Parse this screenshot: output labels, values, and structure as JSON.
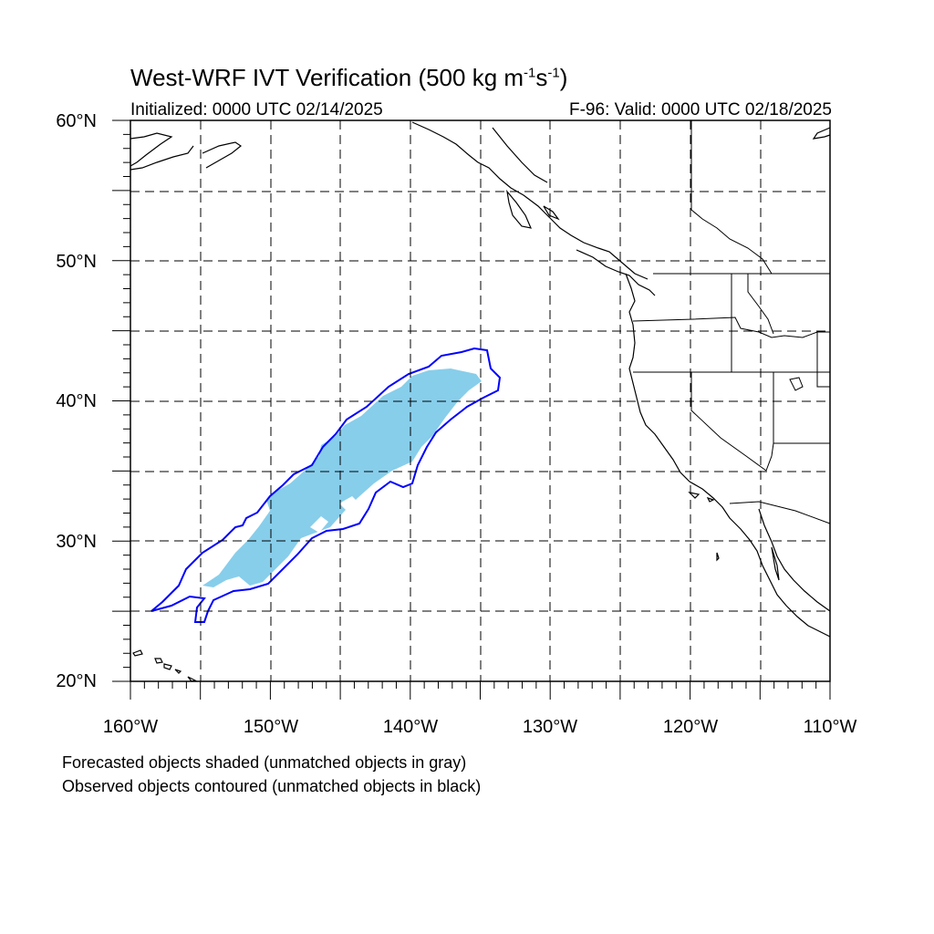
{
  "title": {
    "main": "West-WRF IVT Verification (500 kg m",
    "exp1": "-1",
    "mid": "s",
    "exp2": "-1",
    "close": ")"
  },
  "subtitle": {
    "initialized": "Initialized: 0000 UTC 02/14/2025",
    "valid": "F-96: Valid: 0000 UTC 02/18/2025"
  },
  "axes": {
    "lat_labels": [
      "60°N",
      "50°N",
      "40°N",
      "30°N",
      "20°N"
    ],
    "lon_labels": [
      "160°W",
      "150°W",
      "140°W",
      "130°W",
      "120°W",
      "110°W"
    ]
  },
  "notes": {
    "forecast": "Forecasted objects shaded (unmatched objects in gray)",
    "observed": "Observed objects contoured (unmatched objects in black)"
  },
  "colors": {
    "forecast_fill": "#87ceeb",
    "observed_contour": "#0000ff",
    "coastline": "#000000",
    "grid": "#000000"
  }
}
